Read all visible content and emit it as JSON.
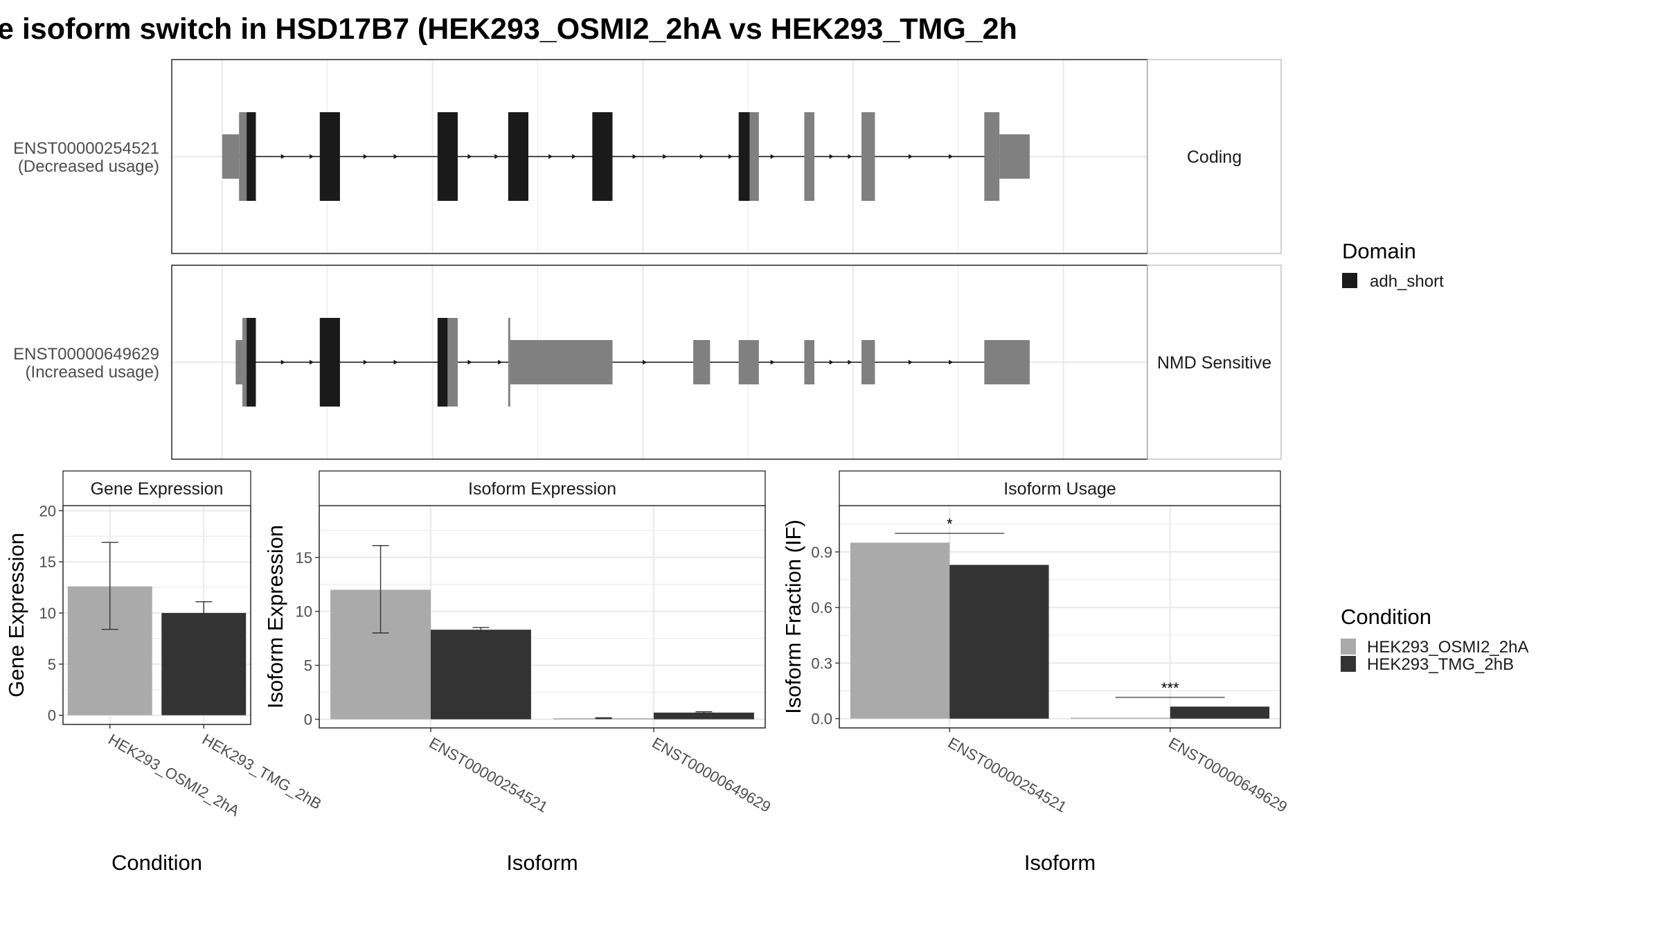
{
  "title": "e isoform switch in HSD17B7 (HEK293_OSMI2_2hA vs HEK293_TMG_2h",
  "colors": {
    "domain": "#1a1a1a",
    "exon": "#808080",
    "cond1": "#aaaaaa",
    "cond2": "#333333",
    "grid": "#ebebeb",
    "panel_border": "#333333",
    "strip_border": "#b3b3b3"
  },
  "transcripts": [
    {
      "id": "ENST00000254521",
      "usage": "(Decreased usage)",
      "strip": "Coding",
      "features": [
        {
          "type": "utr",
          "start": 0.0,
          "end": 1.0
        },
        {
          "type": "cds",
          "start": 1.0,
          "end": 1.45
        },
        {
          "type": "domain",
          "start": 1.45,
          "end": 2.0
        },
        {
          "type": "domain",
          "start": 5.8,
          "end": 7.0
        },
        {
          "type": "domain",
          "start": 12.8,
          "end": 14.0
        },
        {
          "type": "domain",
          "start": 17.0,
          "end": 18.2
        },
        {
          "type": "domain",
          "start": 22.0,
          "end": 23.2
        },
        {
          "type": "domain",
          "start": 30.7,
          "end": 31.35
        },
        {
          "type": "cds",
          "start": 31.35,
          "end": 31.9
        },
        {
          "type": "cds",
          "start": 34.6,
          "end": 35.2
        },
        {
          "type": "cds",
          "start": 38.0,
          "end": 38.8
        },
        {
          "type": "cds",
          "start": 45.3,
          "end": 46.2
        },
        {
          "type": "utr",
          "start": 46.2,
          "end": 48.0
        }
      ],
      "arrows": [
        3.7,
        5.4,
        8.6,
        10.4,
        14.8,
        16.4,
        19.6,
        21.0,
        24.6,
        26.4,
        28.6,
        30.3,
        32.8,
        36.3,
        37.4,
        41.0,
        43.4
      ]
    },
    {
      "id": "ENST00000649629",
      "usage": "(Increased usage)",
      "strip": "NMD Sensitive",
      "features": [
        {
          "type": "utr",
          "start": 0.8,
          "end": 1.2
        },
        {
          "type": "cds",
          "start": 1.2,
          "end": 1.45
        },
        {
          "type": "domain",
          "start": 1.45,
          "end": 2.0
        },
        {
          "type": "domain",
          "start": 5.8,
          "end": 7.0
        },
        {
          "type": "domain",
          "start": 12.8,
          "end": 13.4
        },
        {
          "type": "cds",
          "start": 13.4,
          "end": 14.0
        },
        {
          "type": "cds",
          "start": 17.0,
          "end": 17.12
        },
        {
          "type": "utr",
          "start": 17.12,
          "end": 23.2
        },
        {
          "type": "utr",
          "start": 28.0,
          "end": 29.0
        },
        {
          "type": "utr",
          "start": 30.7,
          "end": 31.9
        },
        {
          "type": "utr",
          "start": 34.6,
          "end": 35.2
        },
        {
          "type": "utr",
          "start": 38.0,
          "end": 38.8
        },
        {
          "type": "utr",
          "start": 45.3,
          "end": 48.0
        }
      ],
      "arrows": [
        3.7,
        5.4,
        8.6,
        10.4,
        14.8,
        16.6,
        25.2,
        32.8,
        36.3,
        37.4,
        41.0,
        43.4
      ]
    }
  ],
  "legend_domain": {
    "title": "Domain",
    "items": [
      {
        "label": "adh_short",
        "color": "#1a1a1a"
      }
    ]
  },
  "legend_condition": {
    "title": "Condition",
    "items": [
      {
        "label": "HEK293_OSMI2_2hA",
        "color": "#aaaaaa"
      },
      {
        "label": "HEK293_TMG_2hB",
        "color": "#333333"
      }
    ]
  },
  "chart_data": [
    {
      "type": "bar",
      "title": "Gene Expression",
      "xlabel": "Condition",
      "ylabel": "Gene Expression",
      "categories": [
        "HEK293_OSMI2_2hA",
        "HEK293_TMG_2hB"
      ],
      "values": [
        12.6,
        10.0
      ],
      "err_low": [
        8.4,
        9.0
      ],
      "err_high": [
        16.9,
        11.1
      ],
      "ylim": [
        -0.9,
        20.5
      ],
      "yticks": [
        0,
        5,
        10,
        15,
        20
      ],
      "grid": true
    },
    {
      "type": "bar",
      "title": "Isoform Expression",
      "xlabel": "Isoform",
      "ylabel": "Isoform Expression",
      "categories": [
        "ENST00000254521",
        "ENST00000649629"
      ],
      "series": [
        {
          "name": "HEK293_OSMI2_2hA",
          "values": [
            12.0,
            0.1
          ],
          "err_low": [
            8.0,
            0.06
          ],
          "err_high": [
            16.1,
            0.14
          ]
        },
        {
          "name": "HEK293_TMG_2hB",
          "values": [
            8.3,
            0.62
          ],
          "err_low": [
            8.1,
            0.55
          ],
          "err_high": [
            8.5,
            0.7
          ]
        }
      ],
      "ylim": [
        -0.8,
        19.8
      ],
      "yticks": [
        0,
        5,
        10,
        15
      ],
      "grid": true
    },
    {
      "type": "bar",
      "title": "Isoform Usage",
      "xlabel": "Isoform",
      "ylabel": "Isoform Fraction (IF)",
      "categories": [
        "ENST00000254521",
        "ENST00000649629"
      ],
      "series": [
        {
          "name": "HEK293_OSMI2_2hA",
          "values": [
            0.95,
            0.005
          ]
        },
        {
          "name": "HEK293_TMG_2hB",
          "values": [
            0.83,
            0.065
          ]
        }
      ],
      "significance": [
        "*",
        "***"
      ],
      "sig_level": [
        1.0,
        0.115
      ],
      "ylim": [
        -0.05,
        1.15
      ],
      "yticks": [
        0.0,
        0.3,
        0.6,
        0.9
      ],
      "ytick_labels": [
        "0.0",
        "0.3",
        "0.6",
        "0.9"
      ],
      "grid": true
    }
  ]
}
